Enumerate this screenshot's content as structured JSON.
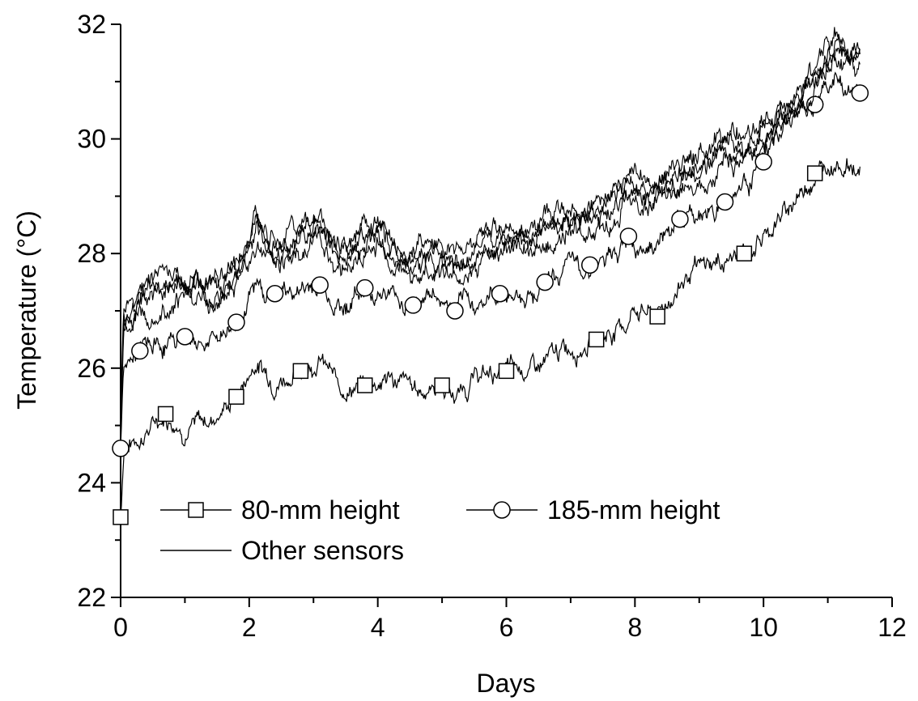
{
  "chart_data": {
    "type": "line",
    "title": "",
    "xlabel": "Days",
    "ylabel": "Temperature (°C)",
    "xlim": [
      0,
      12
    ],
    "ylim": [
      22,
      32
    ],
    "x_ticks": [
      "0",
      "2",
      "4",
      "6",
      "8",
      "10",
      "12"
    ],
    "y_ticks": [
      "22",
      "24",
      "26",
      "28",
      "30",
      "32"
    ],
    "grid": false,
    "legend_position": "bottom-left",
    "series": [
      {
        "name": "80-mm height",
        "marker": "square",
        "x": [
          0,
          0.05,
          0.3,
          0.7,
          1.0,
          1.4,
          1.8,
          2.1,
          2.4,
          2.8,
          3.1,
          3.4,
          3.8,
          4.2,
          4.6,
          5.0,
          5.2,
          5.55,
          6.0,
          6.5,
          6.95,
          7.4,
          7.9,
          8.0,
          8.35,
          8.8,
          9.2,
          9.7,
          10.0,
          10.4,
          10.8,
          11.1,
          11.5
        ],
        "y": [
          23.4,
          24.6,
          24.8,
          25.2,
          24.95,
          25.1,
          25.5,
          26.1,
          25.8,
          25.95,
          26.2,
          25.65,
          25.7,
          25.85,
          25.6,
          25.7,
          25.5,
          25.85,
          25.95,
          26.0,
          26.35,
          26.5,
          26.8,
          27.1,
          26.9,
          27.6,
          27.8,
          28.0,
          28.3,
          28.8,
          29.4,
          29.65,
          29.45
        ]
      },
      {
        "name": "185-mm height",
        "marker": "circle",
        "x": [
          0,
          0.05,
          0.3,
          0.7,
          1.0,
          1.4,
          1.8,
          2.1,
          2.4,
          2.8,
          3.1,
          3.45,
          3.8,
          4.2,
          4.55,
          4.85,
          5.2,
          5.55,
          5.9,
          6.25,
          6.6,
          6.95,
          7.3,
          7.65,
          7.9,
          8.35,
          8.7,
          9.05,
          9.4,
          9.7,
          10.0,
          10.4,
          10.8,
          11.1,
          11.5
        ],
        "y": [
          24.6,
          26.0,
          26.3,
          26.4,
          26.55,
          26.45,
          26.8,
          27.4,
          27.3,
          27.35,
          27.45,
          27.05,
          27.4,
          27.3,
          27.1,
          27.3,
          27.0,
          27.15,
          27.3,
          27.25,
          27.5,
          27.75,
          27.8,
          27.85,
          28.3,
          28.2,
          28.6,
          28.7,
          28.9,
          29.25,
          29.6,
          30.35,
          30.6,
          31.0,
          30.8
        ]
      },
      {
        "name": "Other sensors",
        "marker": "none",
        "x": [
          0,
          0.05,
          0.3,
          0.6,
          1.0,
          1.4,
          1.8,
          2.1,
          2.4,
          2.8,
          3.1,
          3.4,
          3.8,
          4.0,
          4.3,
          4.6,
          5.0,
          5.3,
          5.6,
          6.0,
          6.4,
          6.8,
          7.2,
          7.6,
          7.9,
          8.2,
          8.6,
          9.0,
          9.4,
          9.8,
          10.1,
          10.4,
          10.8,
          11.1,
          11.3,
          11.5
        ],
        "y": [
          25.0,
          26.9,
          27.1,
          27.35,
          27.4,
          27.3,
          27.6,
          28.3,
          28.0,
          28.2,
          28.4,
          27.9,
          28.1,
          28.3,
          27.9,
          27.8,
          27.85,
          27.7,
          28.05,
          28.15,
          28.2,
          28.4,
          28.55,
          28.7,
          29.15,
          29.0,
          29.15,
          29.5,
          29.75,
          29.85,
          30.2,
          30.5,
          31.0,
          31.5,
          31.45,
          31.35
        ]
      }
    ]
  }
}
